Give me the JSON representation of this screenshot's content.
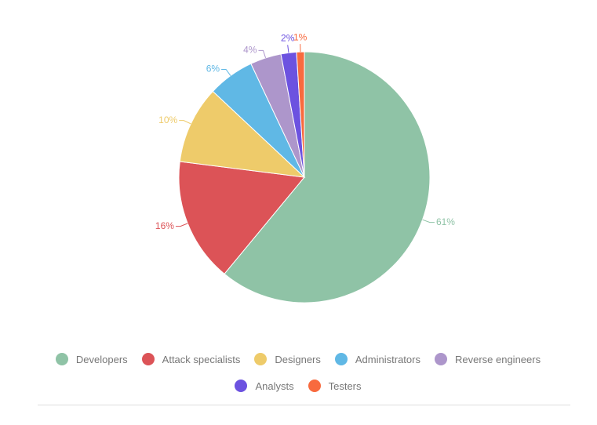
{
  "chart_data": {
    "type": "pie",
    "categories": [
      "Developers",
      "Attack specialists",
      "Designers",
      "Administrators",
      "Reverse engineers",
      "Analysts",
      "Testers"
    ],
    "values": [
      61,
      16,
      10,
      6,
      4,
      2,
      1
    ],
    "value_labels": [
      "61%",
      "16%",
      "10%",
      "6%",
      "4%",
      "2%",
      "1%"
    ],
    "colors": [
      "#8fc3a6",
      "#dc5357",
      "#eecb6a",
      "#60b8e5",
      "#ad96cb",
      "#6c52e0",
      "#f86a3e"
    ]
  }
}
